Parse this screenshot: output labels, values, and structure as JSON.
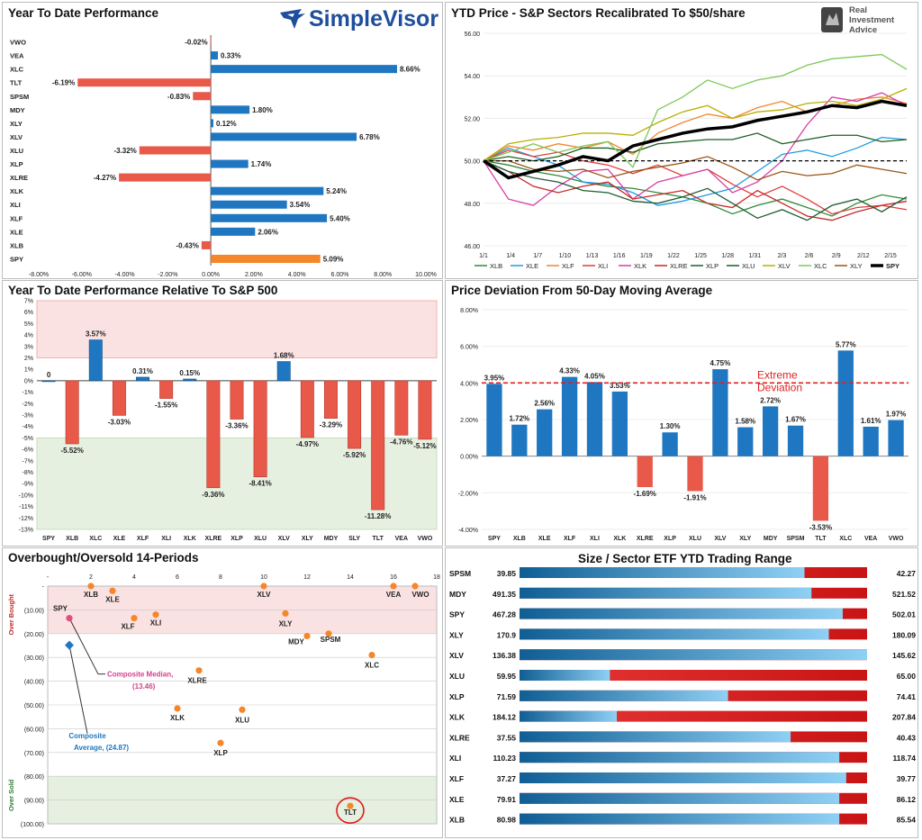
{
  "brand": {
    "simplevisor": "SimpleVisor",
    "ria_lines": [
      "Real",
      "Investment",
      "Advice"
    ]
  },
  "colors": {
    "blue": "#1f77c1",
    "red": "#e8594a",
    "orange": "#f5862a",
    "green_zone": "#e6f0e1",
    "red_zone": "#fbe2e2"
  },
  "panel1": {
    "title": "Year To Date Performance",
    "chart_data": {
      "type": "bar",
      "orientation": "horizontal",
      "categories": [
        "VWO",
        "VEA",
        "XLC",
        "TLT",
        "SPSM",
        "MDY",
        "XLY",
        "XLV",
        "XLU",
        "XLP",
        "XLRE",
        "XLK",
        "XLI",
        "XLF",
        "XLE",
        "XLB",
        "SPY"
      ],
      "values": [
        -0.02,
        0.33,
        8.66,
        -6.19,
        -0.83,
        1.8,
        0.12,
        6.78,
        -3.32,
        1.74,
        -4.27,
        5.24,
        3.54,
        5.4,
        2.06,
        -0.43,
        5.09
      ],
      "labels": [
        "-0.02%",
        "0.33%",
        "8.66%",
        "-6.19%",
        "-0.83%",
        "1.80%",
        "0.12%",
        "6.78%",
        "-3.32%",
        "1.74%",
        "-4.27%",
        "5.24%",
        "3.54%",
        "5.40%",
        "2.06%",
        "-0.43%",
        "5.09%"
      ],
      "xlim": [
        -8,
        10
      ],
      "xticks": [
        -8,
        -6,
        -4,
        -2,
        0,
        2,
        4,
        6,
        8,
        10
      ],
      "xtick_labels": [
        "-8.00%",
        "-6.00%",
        "-4.00%",
        "-2.00%",
        "0.00%",
        "2.00%",
        "4.00%",
        "6.00%",
        "8.00%",
        "10.00%"
      ],
      "highlight": "SPY"
    }
  },
  "panel2": {
    "title": "YTD Price - S&P Sectors Recalibrated To $50/share",
    "chart_data": {
      "type": "line",
      "ylim": [
        46,
        56
      ],
      "yticks": [
        46,
        48,
        50,
        52,
        54,
        56
      ],
      "ytick_labels": [
        "46.00",
        "48.00",
        "50.00",
        "52.00",
        "54.00",
        "56.00"
      ],
      "xtick_labels": [
        "1/1",
        "1/4",
        "1/7",
        "1/10",
        "1/13",
        "1/16",
        "1/19",
        "1/22",
        "1/25",
        "1/28",
        "1/31",
        "2/3",
        "2/6",
        "2/9",
        "2/12",
        "2/15"
      ],
      "reference": 50,
      "series": [
        {
          "name": "XLB",
          "color": "#2e8b3a",
          "values": [
            50,
            49.8,
            49.5,
            49.3,
            49.0,
            48.8,
            48.7,
            48.5,
            48.3,
            48.0,
            47.5,
            47.9,
            48.2,
            47.8,
            47.4,
            48.0,
            48.4,
            48.2
          ]
        },
        {
          "name": "XLE",
          "color": "#1f9be0",
          "values": [
            50,
            50.6,
            50.2,
            49.8,
            49.0,
            48.9,
            48.5,
            47.9,
            48.1,
            48.4,
            48.7,
            49.5,
            50.3,
            50.5,
            50.2,
            50.6,
            51.1,
            51.0
          ]
        },
        {
          "name": "XLF",
          "color": "#f0862e",
          "values": [
            50,
            50.7,
            50.5,
            50.8,
            50.6,
            50.9,
            50.3,
            51.3,
            51.8,
            52.2,
            52.0,
            52.5,
            52.8,
            52.3,
            52.6,
            52.9,
            53.0,
            52.7
          ]
        },
        {
          "name": "XLI",
          "color": "#e23b3b",
          "values": [
            50,
            50.5,
            50.2,
            50.4,
            50.0,
            49.8,
            49.4,
            49.8,
            49.3,
            49.6,
            48.9,
            48.3,
            48.8,
            48.2,
            47.5,
            47.8,
            47.9,
            47.7
          ]
        },
        {
          "name": "XLK",
          "color": "#d83ea3",
          "values": [
            50,
            48.2,
            47.9,
            48.8,
            49.5,
            49.6,
            48.2,
            49.0,
            49.3,
            49.6,
            48.5,
            49.0,
            50.0,
            51.7,
            53.0,
            52.8,
            53.2,
            52.6
          ]
        },
        {
          "name": "XLRE",
          "color": "#c62828",
          "values": [
            50,
            49.5,
            48.8,
            48.5,
            48.8,
            49.0,
            48.2,
            48.4,
            48.6,
            48.0,
            47.8,
            48.6,
            48.0,
            47.4,
            47.2,
            47.6,
            47.9,
            48.1
          ]
        },
        {
          "name": "XLP",
          "color": "#215c33",
          "values": [
            50,
            49.5,
            49.2,
            49.0,
            48.6,
            48.5,
            48.1,
            48.0,
            48.3,
            48.7,
            48.0,
            47.3,
            47.7,
            47.2,
            47.9,
            48.2,
            47.6,
            48.3
          ]
        },
        {
          "name": "XLU",
          "color": "#1b5e20",
          "values": [
            50,
            50.2,
            50.0,
            50.2,
            50.6,
            50.6,
            50.4,
            50.8,
            50.9,
            51.0,
            51.0,
            51.3,
            50.8,
            51.0,
            51.2,
            51.2,
            50.9,
            51.0
          ]
        },
        {
          "name": "XLV",
          "color": "#b8b000",
          "values": [
            50,
            50.8,
            51.0,
            51.1,
            51.3,
            51.3,
            51.2,
            51.8,
            52.3,
            52.6,
            52.0,
            52.3,
            52.4,
            52.7,
            52.8,
            52.6,
            52.9,
            53.4
          ]
        },
        {
          "name": "XLC",
          "color": "#7ec85a",
          "values": [
            50,
            50.4,
            50.8,
            50.4,
            50.7,
            50.9,
            49.7,
            52.4,
            53.0,
            53.8,
            53.4,
            53.8,
            54.0,
            54.5,
            54.8,
            54.9,
            55.0,
            54.3
          ]
        },
        {
          "name": "XLY",
          "color": "#9a5417",
          "values": [
            50,
            50.0,
            49.6,
            49.5,
            49.6,
            49.2,
            49.5,
            49.7,
            49.9,
            50.2,
            49.7,
            49.1,
            49.5,
            49.3,
            49.4,
            49.8,
            49.6,
            49.4
          ]
        },
        {
          "name": "SPY",
          "color": "#000000",
          "values": [
            50,
            49.2,
            49.5,
            49.8,
            50.2,
            50.0,
            50.7,
            51.0,
            51.3,
            51.5,
            51.6,
            51.9,
            52.1,
            52.3,
            52.6,
            52.5,
            52.8,
            52.6
          ]
        }
      ]
    }
  },
  "panel3": {
    "title": "Year To Date Performance Relative To S&P 500",
    "chart_data": {
      "type": "bar",
      "categories": [
        "SPY",
        "XLB",
        "XLC",
        "XLE",
        "XLF",
        "XLI",
        "XLK",
        "XLRE",
        "XLP",
        "XLU",
        "XLV",
        "XLY",
        "MDY",
        "SLY",
        "TLT",
        "VEA",
        "VWO"
      ],
      "values": [
        0,
        -5.52,
        3.57,
        -3.03,
        0.31,
        -1.55,
        0.15,
        -9.36,
        -3.36,
        -8.41,
        1.68,
        -4.97,
        -3.29,
        -5.92,
        -11.28,
        -4.76,
        -5.12
      ],
      "labels": [
        "0",
        "-5.52%",
        "3.57%",
        "-3.03%",
        "0.31%",
        "-1.55%",
        "0.15%",
        "-9.36%",
        "-3.36%",
        "-8.41%",
        "1.68%",
        "-4.97%",
        "-3.29%",
        "-5.92%",
        "-11.28%",
        "-4.76%",
        "-5.12%"
      ],
      "ylim": [
        -13,
        7
      ],
      "zones": {
        "red_above": 2,
        "green_below": -5
      },
      "ytick_labels": [
        "7%",
        "6%",
        "5%",
        "4%",
        "3%",
        "2%",
        "1%",
        "0%",
        "-1%",
        "-2%",
        "-3%",
        "-4%",
        "-5%",
        "-6%",
        "-7%",
        "-8%",
        "-9%",
        "-10%",
        "-11%",
        "-12%",
        "-13%"
      ]
    }
  },
  "panel4": {
    "title": "Price Deviation From 50-Day Moving Average",
    "chart_data": {
      "type": "bar",
      "categories": [
        "SPY",
        "XLB",
        "XLE",
        "XLF",
        "XLI",
        "XLK",
        "XLRE",
        "XLP",
        "XLU",
        "XLV",
        "XLY",
        "MDY",
        "SPSM",
        "TLT",
        "XLC",
        "VEA",
        "VWO"
      ],
      "values": [
        3.95,
        1.72,
        2.56,
        4.33,
        4.05,
        3.53,
        -1.69,
        1.3,
        -1.91,
        4.75,
        1.58,
        2.72,
        1.67,
        -3.53,
        5.77,
        1.61,
        1.97
      ],
      "labels": [
        "3.95%",
        "1.72%",
        "2.56%",
        "4.33%",
        "4.05%",
        "3.53%",
        "-1.69%",
        "1.30%",
        "-1.91%",
        "4.75%",
        "1.58%",
        "2.72%",
        "1.67%",
        "-3.53%",
        "5.77%",
        "1.61%",
        "1.97%"
      ],
      "ylim": [
        -4,
        8
      ],
      "yticks": [
        -4,
        -2,
        0,
        2,
        4,
        6,
        8
      ],
      "ytick_labels": [
        "-4.00%",
        "-2.00%",
        "0.00%",
        "2.00%",
        "4.00%",
        "6.00%",
        "8.00%"
      ],
      "threshold": 4,
      "threshold_label": [
        "Extreme",
        "Deviation"
      ]
    }
  },
  "panel5": {
    "title": "Overbought/Oversold 14-Periods",
    "chart_data": {
      "type": "scatter",
      "xlim": [
        0,
        18
      ],
      "xticks": [
        "-",
        "2",
        "4",
        "6",
        "8",
        "10",
        "12",
        "14",
        "16",
        "18"
      ],
      "ylim": [
        0,
        -100
      ],
      "ytick_labels": [
        "-",
        "(10.00)",
        "(20.00)",
        "(30.00)",
        "(40.00)",
        "(50.00)",
        "(60.00)",
        "(70.00)",
        "(80.00)",
        "(90.00)",
        "(100.00)"
      ],
      "zones": {
        "overbought_above": -20,
        "oversold_below": -80
      },
      "side_labels": {
        "top": "Over Bought",
        "bottom": "Over Sold"
      },
      "points": [
        {
          "label": "SPY",
          "x": 1,
          "y": -13.5,
          "color": "#e0507e"
        },
        {
          "label": "XLB",
          "x": 2,
          "y": 0
        },
        {
          "label": "XLE",
          "x": 3,
          "y": -2
        },
        {
          "label": "XLF",
          "x": 4,
          "y": -13.5
        },
        {
          "label": "XLI",
          "x": 5,
          "y": -12
        },
        {
          "label": "XLRE",
          "x": 7,
          "y": -35.5
        },
        {
          "label": "XLK",
          "x": 6,
          "y": -51.5
        },
        {
          "label": "XLP",
          "x": 8,
          "y": -66
        },
        {
          "label": "XLU",
          "x": 9,
          "y": -52
        },
        {
          "label": "XLV",
          "x": 10,
          "y": 0
        },
        {
          "label": "XLY",
          "x": 11,
          "y": -11.5
        },
        {
          "label": "MDY",
          "x": 12,
          "y": -21
        },
        {
          "label": "SPSM",
          "x": 13,
          "y": -20
        },
        {
          "label": "XLC",
          "x": 15,
          "y": -29
        },
        {
          "label": "VEA",
          "x": 16,
          "y": 0
        },
        {
          "label": "VWO",
          "x": 17,
          "y": 0
        },
        {
          "label": "TLT",
          "x": 14,
          "y": -92.5
        }
      ],
      "composite_median": {
        "label": "Composite Median,",
        "value_label": "(13.46)",
        "x": 1,
        "y": -13.46
      },
      "composite_average": {
        "label": "Composite",
        "label2": "Average,",
        "value_label": "(24.87)",
        "x": 1,
        "y": -24.87
      }
    }
  },
  "panel6": {
    "title": "Size / Sector ETF YTD Trading Range",
    "chart_data": {
      "type": "range",
      "rows": [
        {
          "ticker": "SPSM",
          "low": "39.85",
          "high": "42.27",
          "position": 0.82
        },
        {
          "ticker": "MDY",
          "low": "491.35",
          "high": "521.52",
          "position": 0.84
        },
        {
          "ticker": "SPY",
          "low": "467.28",
          "high": "502.01",
          "position": 0.93
        },
        {
          "ticker": "XLY",
          "low": "170.9",
          "high": "180.09",
          "position": 0.89
        },
        {
          "ticker": "XLV",
          "low": "136.38",
          "high": "145.62",
          "position": 1.0
        },
        {
          "ticker": "XLU",
          "low": "59.95",
          "high": "65.00",
          "position": 0.26
        },
        {
          "ticker": "XLP",
          "low": "71.59",
          "high": "74.41",
          "position": 0.6
        },
        {
          "ticker": "XLK",
          "low": "184.12",
          "high": "207.84",
          "position": 0.28
        },
        {
          "ticker": "XLRE",
          "low": "37.55",
          "high": "40.43",
          "position": 0.78
        },
        {
          "ticker": "XLI",
          "low": "110.23",
          "high": "118.74",
          "position": 0.92
        },
        {
          "ticker": "XLF",
          "low": "37.27",
          "high": "39.77",
          "position": 0.94
        },
        {
          "ticker": "XLE",
          "low": "79.91",
          "high": "86.12",
          "position": 0.92
        },
        {
          "ticker": "XLB",
          "low": "80.98",
          "high": "85.54",
          "position": 0.92
        }
      ]
    }
  }
}
